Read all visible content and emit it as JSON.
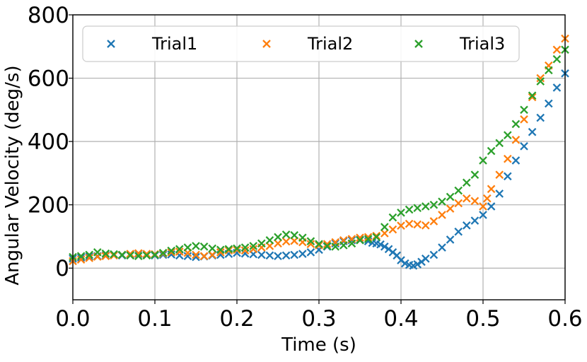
{
  "chart_data": {
    "type": "scatter",
    "title": "",
    "xlabel": "Time (s)",
    "ylabel": "Angular Velocity (deg/s)",
    "xlim": [
      0.0,
      0.6
    ],
    "ylim": [
      -100,
      800
    ],
    "x_ticks": [
      "0.0",
      "0.1",
      "0.2",
      "0.3",
      "0.4",
      "0.5",
      "0.6"
    ],
    "y_ticks": [
      "0",
      "200",
      "400",
      "600",
      "800"
    ],
    "grid": true,
    "legend_position": "top",
    "marker": "x",
    "series": [
      {
        "name": "Trial1",
        "color": "#1f77b4",
        "points": [
          [
            0.0,
            30
          ],
          [
            0.01,
            33
          ],
          [
            0.02,
            36
          ],
          [
            0.03,
            38
          ],
          [
            0.04,
            40
          ],
          [
            0.05,
            42
          ],
          [
            0.06,
            40
          ],
          [
            0.07,
            43
          ],
          [
            0.08,
            45
          ],
          [
            0.09,
            42
          ],
          [
            0.1,
            40
          ],
          [
            0.11,
            42
          ],
          [
            0.12,
            43
          ],
          [
            0.13,
            40
          ],
          [
            0.14,
            38
          ],
          [
            0.15,
            35
          ],
          [
            0.16,
            37
          ],
          [
            0.17,
            40
          ],
          [
            0.18,
            42
          ],
          [
            0.19,
            45
          ],
          [
            0.2,
            48
          ],
          [
            0.21,
            46
          ],
          [
            0.22,
            44
          ],
          [
            0.23,
            42
          ],
          [
            0.24,
            40
          ],
          [
            0.25,
            38
          ],
          [
            0.26,
            40
          ],
          [
            0.27,
            42
          ],
          [
            0.28,
            45
          ],
          [
            0.29,
            50
          ],
          [
            0.3,
            58
          ],
          [
            0.31,
            68
          ],
          [
            0.32,
            78
          ],
          [
            0.33,
            85
          ],
          [
            0.34,
            88
          ],
          [
            0.35,
            90
          ],
          [
            0.36,
            85
          ],
          [
            0.365,
            80
          ],
          [
            0.37,
            78
          ],
          [
            0.375,
            75
          ],
          [
            0.38,
            68
          ],
          [
            0.385,
            60
          ],
          [
            0.39,
            50
          ],
          [
            0.395,
            40
          ],
          [
            0.4,
            25
          ],
          [
            0.405,
            15
          ],
          [
            0.41,
            10
          ],
          [
            0.415,
            8
          ],
          [
            0.42,
            12
          ],
          [
            0.425,
            20
          ],
          [
            0.43,
            30
          ],
          [
            0.44,
            42
          ],
          [
            0.45,
            65
          ],
          [
            0.46,
            90
          ],
          [
            0.47,
            115
          ],
          [
            0.48,
            135
          ],
          [
            0.49,
            150
          ],
          [
            0.5,
            168
          ],
          [
            0.51,
            195
          ],
          [
            0.52,
            235
          ],
          [
            0.53,
            290
          ],
          [
            0.54,
            340
          ],
          [
            0.55,
            385
          ],
          [
            0.56,
            430
          ],
          [
            0.57,
            475
          ],
          [
            0.58,
            520
          ],
          [
            0.59,
            570
          ],
          [
            0.6,
            615
          ]
        ]
      },
      {
        "name": "Trial2",
        "color": "#ff7f0e",
        "points": [
          [
            0.0,
            22
          ],
          [
            0.01,
            27
          ],
          [
            0.02,
            32
          ],
          [
            0.03,
            36
          ],
          [
            0.04,
            38
          ],
          [
            0.05,
            40
          ],
          [
            0.06,
            42
          ],
          [
            0.07,
            45
          ],
          [
            0.08,
            47
          ],
          [
            0.09,
            45
          ],
          [
            0.1,
            44
          ],
          [
            0.11,
            46
          ],
          [
            0.12,
            50
          ],
          [
            0.13,
            52
          ],
          [
            0.14,
            48
          ],
          [
            0.15,
            42
          ],
          [
            0.16,
            38
          ],
          [
            0.17,
            42
          ],
          [
            0.18,
            50
          ],
          [
            0.19,
            56
          ],
          [
            0.2,
            58
          ],
          [
            0.21,
            56
          ],
          [
            0.22,
            60
          ],
          [
            0.23,
            65
          ],
          [
            0.24,
            70
          ],
          [
            0.25,
            78
          ],
          [
            0.26,
            84
          ],
          [
            0.27,
            86
          ],
          [
            0.28,
            82
          ],
          [
            0.29,
            76
          ],
          [
            0.3,
            72
          ],
          [
            0.31,
            76
          ],
          [
            0.32,
            82
          ],
          [
            0.33,
            88
          ],
          [
            0.34,
            92
          ],
          [
            0.35,
            96
          ],
          [
            0.36,
            98
          ],
          [
            0.37,
            102
          ],
          [
            0.38,
            110
          ],
          [
            0.39,
            122
          ],
          [
            0.4,
            134
          ],
          [
            0.41,
            140
          ],
          [
            0.42,
            138
          ],
          [
            0.43,
            135
          ],
          [
            0.44,
            148
          ],
          [
            0.45,
            168
          ],
          [
            0.46,
            188
          ],
          [
            0.47,
            205
          ],
          [
            0.48,
            220
          ],
          [
            0.49,
            212
          ],
          [
            0.5,
            195
          ],
          [
            0.505,
            220
          ],
          [
            0.51,
            250
          ],
          [
            0.52,
            295
          ],
          [
            0.53,
            345
          ],
          [
            0.54,
            405
          ],
          [
            0.55,
            470
          ],
          [
            0.56,
            540
          ],
          [
            0.57,
            600
          ],
          [
            0.58,
            640
          ],
          [
            0.59,
            690
          ],
          [
            0.6,
            725
          ]
        ]
      },
      {
        "name": "Trial3",
        "color": "#2ca02c",
        "points": [
          [
            0.0,
            35
          ],
          [
            0.01,
            38
          ],
          [
            0.02,
            42
          ],
          [
            0.03,
            50
          ],
          [
            0.04,
            46
          ],
          [
            0.05,
            44
          ],
          [
            0.06,
            42
          ],
          [
            0.07,
            40
          ],
          [
            0.08,
            38
          ],
          [
            0.09,
            40
          ],
          [
            0.1,
            42
          ],
          [
            0.11,
            48
          ],
          [
            0.12,
            55
          ],
          [
            0.13,
            60
          ],
          [
            0.14,
            65
          ],
          [
            0.15,
            70
          ],
          [
            0.16,
            68
          ],
          [
            0.17,
            62
          ],
          [
            0.18,
            58
          ],
          [
            0.19,
            60
          ],
          [
            0.2,
            62
          ],
          [
            0.21,
            65
          ],
          [
            0.22,
            70
          ],
          [
            0.23,
            78
          ],
          [
            0.24,
            88
          ],
          [
            0.25,
            98
          ],
          [
            0.26,
            106
          ],
          [
            0.27,
            104
          ],
          [
            0.28,
            96
          ],
          [
            0.29,
            85
          ],
          [
            0.3,
            76
          ],
          [
            0.31,
            70
          ],
          [
            0.32,
            68
          ],
          [
            0.33,
            72
          ],
          [
            0.34,
            78
          ],
          [
            0.35,
            88
          ],
          [
            0.36,
            92
          ],
          [
            0.37,
            98
          ],
          [
            0.38,
            130
          ],
          [
            0.39,
            160
          ],
          [
            0.4,
            175
          ],
          [
            0.41,
            185
          ],
          [
            0.42,
            190
          ],
          [
            0.43,
            195
          ],
          [
            0.44,
            200
          ],
          [
            0.45,
            210
          ],
          [
            0.46,
            225
          ],
          [
            0.47,
            245
          ],
          [
            0.48,
            270
          ],
          [
            0.49,
            295
          ],
          [
            0.5,
            340
          ],
          [
            0.51,
            370
          ],
          [
            0.52,
            395
          ],
          [
            0.53,
            420
          ],
          [
            0.54,
            455
          ],
          [
            0.55,
            500
          ],
          [
            0.56,
            545
          ],
          [
            0.57,
            590
          ],
          [
            0.58,
            625
          ],
          [
            0.59,
            660
          ],
          [
            0.6,
            690
          ]
        ]
      }
    ]
  }
}
